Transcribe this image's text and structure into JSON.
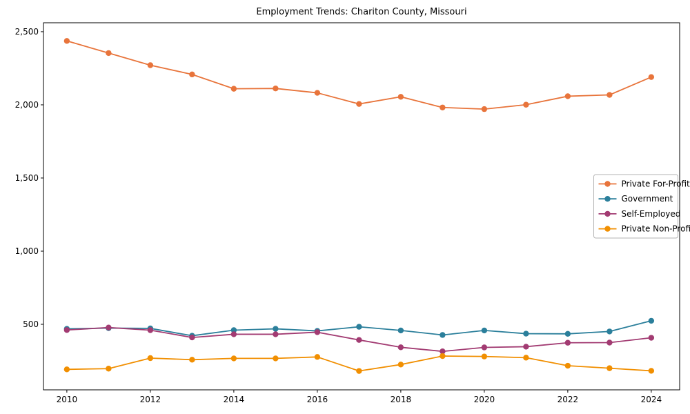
{
  "page": {
    "title": "Employment Trends: Chariton County, Missouri"
  },
  "chart_data": {
    "type": "line",
    "title": "Employment Trends: Chariton County, Missouri",
    "xlabel": "",
    "ylabel": "",
    "grid": false,
    "legend_position": "center-right",
    "xlim": [
      2009.44,
      2024.68
    ],
    "ylim": [
      52,
      2561
    ],
    "x": [
      2010,
      2011,
      2012,
      2013,
      2014,
      2015,
      2016,
      2017,
      2018,
      2019,
      2020,
      2021,
      2022,
      2023,
      2024
    ],
    "x_ticks": [
      2010,
      2012,
      2014,
      2016,
      2018,
      2020,
      2022,
      2024
    ],
    "x_tick_labels": [
      "2010",
      "2012",
      "2014",
      "2016",
      "2018",
      "2020",
      "2022",
      "2024"
    ],
    "y_ticks": [
      500,
      1000,
      1500,
      2000,
      2500
    ],
    "y_tick_labels": [
      "500",
      "1,000",
      "1,500",
      "2,000",
      "2,500"
    ],
    "series": [
      {
        "name": "Private For-Profit",
        "color": "#E8743B",
        "values": [
          2437,
          2354,
          2271,
          2208,
          2110,
          2112,
          2082,
          2006,
          2055,
          1982,
          1971,
          2001,
          2059,
          2068,
          2190
        ]
      },
      {
        "name": "Government",
        "color": "#2B7F9B",
        "values": [
          469,
          474,
          472,
          422,
          460,
          469,
          455,
          483,
          458,
          427,
          458,
          436,
          435,
          451,
          524
        ]
      },
      {
        "name": "Self-Employed",
        "color": "#A23B72",
        "values": [
          461,
          478,
          460,
          410,
          432,
          432,
          446,
          393,
          343,
          315,
          342,
          347,
          374,
          375,
          408
        ]
      },
      {
        "name": "Private Non-Profit",
        "color": "#F18F01",
        "values": [
          192,
          197,
          269,
          258,
          267,
          267,
          277,
          181,
          225,
          283,
          280,
          272,
          217,
          200,
          182
        ]
      }
    ]
  }
}
